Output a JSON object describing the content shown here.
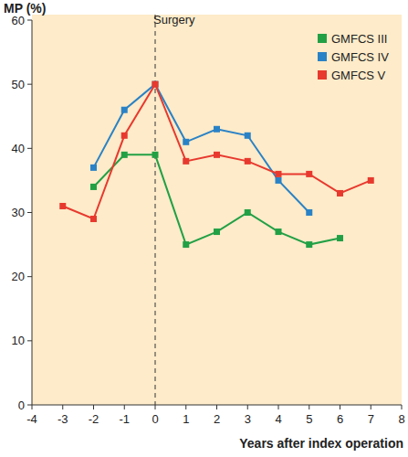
{
  "chart_data": {
    "type": "line",
    "x_label": "Years after index operation",
    "y_label": "MP (%)",
    "x": [
      -3,
      -2,
      -1,
      0,
      1,
      2,
      3,
      4,
      5,
      6,
      7
    ],
    "series": [
      {
        "name": "GMFCS III",
        "color": "#22a046",
        "values": [
          null,
          34,
          39,
          39,
          25,
          27,
          30,
          27,
          25,
          26,
          null
        ]
      },
      {
        "name": "GMFCS IV",
        "color": "#2a82c6",
        "values": [
          null,
          37,
          46,
          50,
          41,
          43,
          42,
          35,
          30,
          null,
          null
        ]
      },
      {
        "name": "GMFCS V",
        "color": "#e8392e",
        "values": [
          31,
          29,
          42,
          50,
          38,
          39,
          38,
          36,
          36,
          33,
          35
        ]
      }
    ],
    "annotations": [
      {
        "x": 0,
        "text": "Surgery"
      }
    ],
    "xlim": [
      -4,
      8
    ],
    "xticks": [
      -4,
      -3,
      -2,
      -1,
      0,
      1,
      2,
      3,
      4,
      5,
      6,
      7,
      8
    ],
    "ylim": [
      0,
      60
    ],
    "yticks": [
      0,
      10,
      20,
      30,
      40,
      50,
      60
    ],
    "grid": false,
    "legend": "top-right",
    "marker": "square",
    "line_style": "solid"
  }
}
